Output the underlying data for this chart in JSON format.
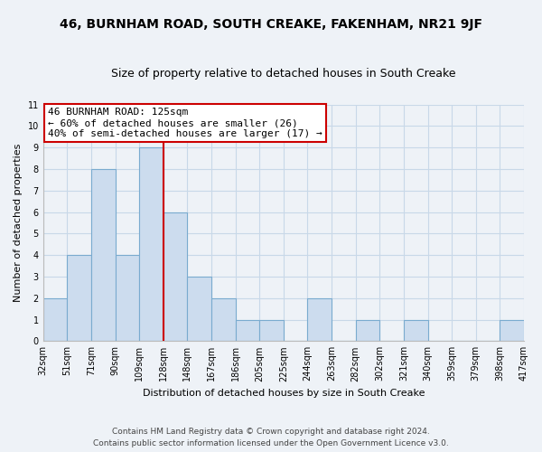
{
  "title": "46, BURNHAM ROAD, SOUTH CREAKE, FAKENHAM, NR21 9JF",
  "subtitle": "Size of property relative to detached houses in South Creake",
  "xlabel": "Distribution of detached houses by size in South Creake",
  "ylabel": "Number of detached properties",
  "bin_labels": [
    "32sqm",
    "51sqm",
    "71sqm",
    "90sqm",
    "109sqm",
    "128sqm",
    "148sqm",
    "167sqm",
    "186sqm",
    "205sqm",
    "225sqm",
    "244sqm",
    "263sqm",
    "282sqm",
    "302sqm",
    "321sqm",
    "340sqm",
    "359sqm",
    "379sqm",
    "398sqm",
    "417sqm"
  ],
  "bar_values": [
    2,
    4,
    8,
    4,
    9,
    6,
    3,
    2,
    1,
    1,
    0,
    2,
    0,
    1,
    0,
    1,
    0,
    0,
    0,
    1
  ],
  "bar_color": "#ccdcee",
  "bar_edge_color": "#7aabcf",
  "red_line_index": 5,
  "annotation_title": "46 BURNHAM ROAD: 125sqm",
  "annotation_line1": "← 60% of detached houses are smaller (26)",
  "annotation_line2": "40% of semi-detached houses are larger (17) →",
  "annotation_box_color": "#ffffff",
  "annotation_box_edge": "#cc0000",
  "red_line_color": "#cc0000",
  "grid_color": "#c8d8e8",
  "footer_line1": "Contains HM Land Registry data © Crown copyright and database right 2024.",
  "footer_line2": "Contains public sector information licensed under the Open Government Licence v3.0.",
  "background_color": "#eef2f7",
  "title_fontsize": 10,
  "subtitle_fontsize": 9,
  "ylabel_fontsize": 8,
  "xlabel_fontsize": 8,
  "tick_fontsize": 7,
  "annotation_fontsize": 8,
  "footer_fontsize": 6.5
}
